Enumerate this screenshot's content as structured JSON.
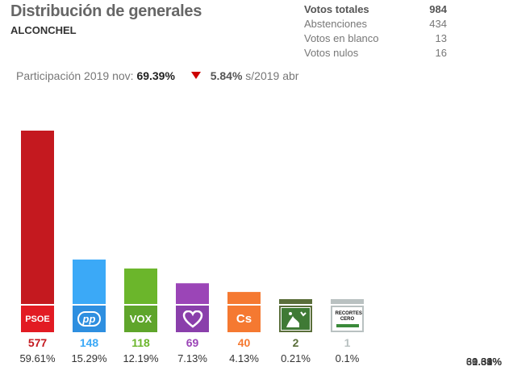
{
  "header": {
    "title": "Distribución de generales",
    "subtitle": "ALCONCHEL"
  },
  "summary": {
    "rows": [
      {
        "label": "Votos totales",
        "value": "984",
        "pct": "69.39%"
      },
      {
        "label": "Abstenciones",
        "value": "434",
        "pct": "30.61%"
      },
      {
        "label": "Votos en blanco",
        "value": "13",
        "pct": "1.34%"
      },
      {
        "label": "Votos nulos",
        "value": "16",
        "pct": "1.63%"
      }
    ]
  },
  "participation": {
    "label": "Participación 2019 nov:",
    "value": "69.39%",
    "change": "5.84%",
    "direction": "down",
    "comparison": "s/2019 abr"
  },
  "chart_data": {
    "type": "bar",
    "categories": [
      "PSOE",
      "PP",
      "VOX",
      "Unidas Podemos",
      "Cs",
      "PACMA",
      "Recortes Cero"
    ],
    "values": [
      577,
      148,
      118,
      69,
      40,
      2,
      1
    ],
    "labels": [
      "577",
      "148",
      "118",
      "69",
      "40",
      "2",
      "1"
    ],
    "percentages": [
      "59.61%",
      "15.29%",
      "12.19%",
      "7.13%",
      "4.13%",
      "0.21%",
      "0.1%"
    ],
    "colors": [
      "#c4191f",
      "#3ba9f7",
      "#6bb62b",
      "#9b45b7",
      "#f57931",
      "#5a6e3a",
      "#b9c1c1"
    ],
    "label_colors": [
      "#c4191f",
      "#3ba9f7",
      "#6bb62b",
      "#9b45b7",
      "#f57931",
      "#5a6e3a",
      "#b9c1c1"
    ],
    "ylim": [
      0,
      577
    ],
    "grid": false,
    "legend": "none"
  },
  "logos": [
    "PSOE",
    "pp",
    "VOX",
    "heart-icon",
    "Cs",
    "pacma-icon",
    "RECORTES CERO"
  ]
}
